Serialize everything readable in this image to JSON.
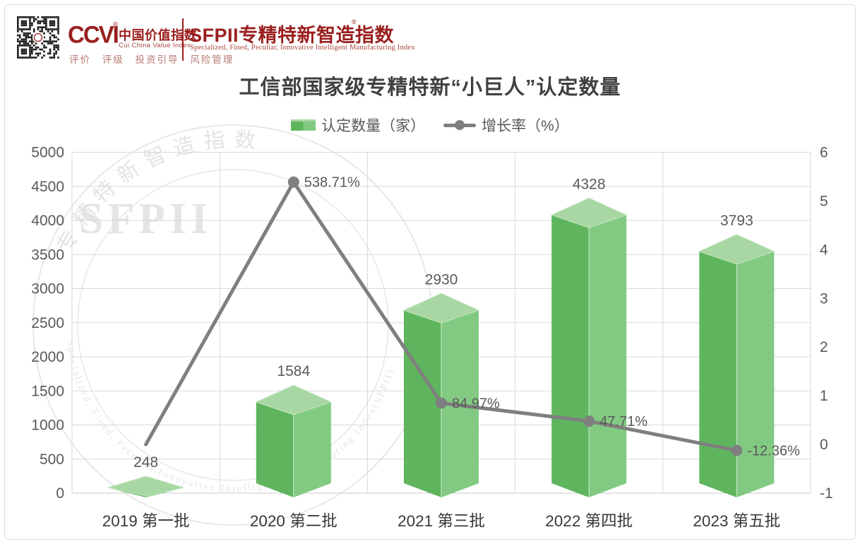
{
  "header": {
    "ccvi_logo": "CCVI",
    "ccvi_reg": "®",
    "ccvi_cn": "中国价值指数",
    "ccvi_en": "Cui China Value Index",
    "ccvi_tagline": "评价 评级 投资引导 风险管理",
    "sfpii_logo": "SFPII专精特新智造指数",
    "sfpii_reg": "®",
    "sfpii_en": "Specialized, Fined, Peculiar, Innovative  Intelligent Manufacturing Index",
    "brand_color": "#9a1e1e"
  },
  "watermark": {
    "center_text": "SFPII",
    "arc_text_top": "专精特新智造指数",
    "arc_text_bottom": "Specialized, Fined, Peculiar,Innovative   Intelligent Manufacturing Index(SFPII)"
  },
  "chart_data": {
    "type": "bar",
    "subtype": "3d-bar + line combo",
    "title": "工信部国家级专精特新“小巨人”认定数量",
    "categories": [
      "2019 第一批",
      "2020 第二批",
      "2021 第三批",
      "2022 第四批",
      "2023 第五批"
    ],
    "series": [
      {
        "name": "认定数量（家）",
        "type": "bar",
        "axis": "left",
        "values": [
          248,
          1584,
          2930,
          4328,
          3793
        ],
        "labels": [
          "248",
          "1584",
          "2930",
          "4328",
          "3793"
        ],
        "color": {
          "left": "#5eb55e",
          "right": "#82ca82",
          "top": "#a9d7a4",
          "edge": "#c3e6bf"
        }
      },
      {
        "name": "增长率（%）",
        "type": "line",
        "axis": "right",
        "values_pct": [
          0,
          538.71,
          84.97,
          47.71,
          -12.36
        ],
        "labels": [
          "",
          "538.71%",
          "84.97%",
          "47.71%",
          "-12.36%"
        ],
        "show_marker": [
          false,
          true,
          true,
          true,
          true
        ],
        "color": "#7f7f7f"
      }
    ],
    "left_axis": {
      "min": 0,
      "max": 5000,
      "step": 500,
      "ticks": [
        "0",
        "500",
        "1000",
        "1500",
        "2000",
        "2500",
        "3000",
        "3500",
        "4000",
        "4500",
        "5000"
      ]
    },
    "right_axis": {
      "min": -1,
      "max": 6,
      "step": 1,
      "ticks": [
        "-1",
        "0",
        "1",
        "2",
        "3",
        "4",
        "5",
        "6"
      ]
    },
    "grid": true,
    "legend_position": "top",
    "text_color": "#595959",
    "grid_color": "#d9d9d9",
    "category_label_color": "#383838"
  }
}
